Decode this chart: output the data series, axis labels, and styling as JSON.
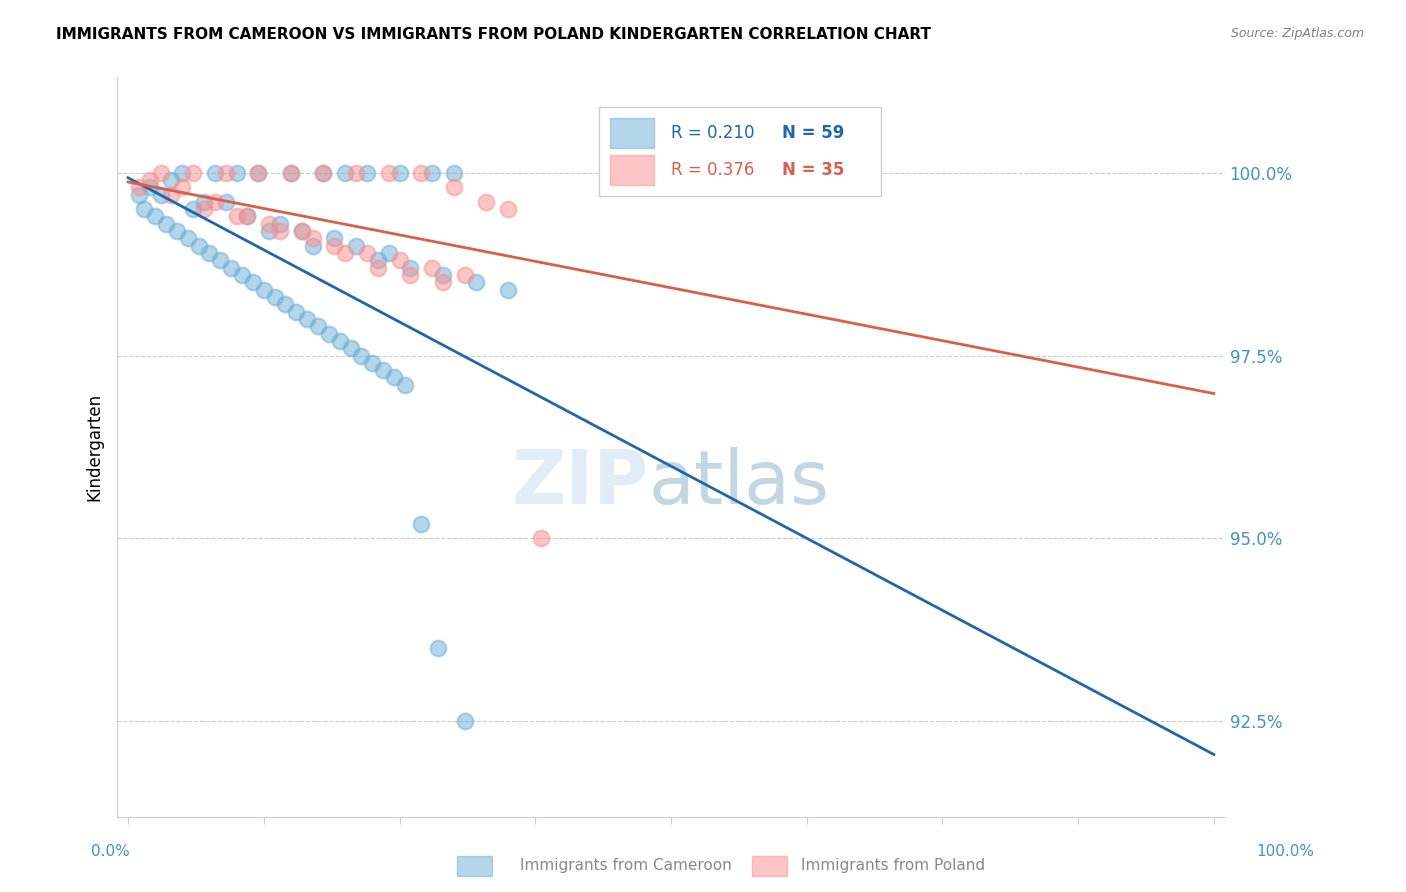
{
  "title": "IMMIGRANTS FROM CAMEROON VS IMMIGRANTS FROM POLAND KINDERGARTEN CORRELATION CHART",
  "source": "Source: ZipAtlas.com",
  "ylabel": "Kindergarten",
  "yticks": [
    92.5,
    95.0,
    97.5,
    100.0
  ],
  "ytick_labels": [
    "92.5%",
    "95.0%",
    "97.5%",
    "100.0%"
  ],
  "legend_blue_r": "R = 0.210",
  "legend_blue_n": "N = 59",
  "legend_pink_r": "R = 0.376",
  "legend_pink_n": "N = 35",
  "blue_color": "#6baed6",
  "pink_color": "#fc8d8d",
  "blue_line_color": "#2166ac",
  "pink_line_color": "#d6604d",
  "text_color": "#4393c3",
  "cameroon_x": [
    0.05,
    0.08,
    0.1,
    0.12,
    0.15,
    0.18,
    0.2,
    0.22,
    0.25,
    0.28,
    0.3,
    0.03,
    0.06,
    0.09,
    0.11,
    0.14,
    0.16,
    0.19,
    0.21,
    0.24,
    0.02,
    0.04,
    0.07,
    0.13,
    0.17,
    0.23,
    0.26,
    0.29,
    0.32,
    0.35,
    0.01,
    0.015,
    0.025,
    0.035,
    0.045,
    0.055,
    0.065,
    0.075,
    0.085,
    0.095,
    0.105,
    0.115,
    0.125,
    0.135,
    0.145,
    0.155,
    0.165,
    0.175,
    0.185,
    0.195,
    0.205,
    0.215,
    0.225,
    0.235,
    0.245,
    0.255,
    0.27,
    0.285,
    0.31
  ],
  "cameroon_y": [
    100.0,
    100.0,
    100.0,
    100.0,
    100.0,
    100.0,
    100.0,
    100.0,
    100.0,
    100.0,
    100.0,
    99.7,
    99.5,
    99.6,
    99.4,
    99.3,
    99.2,
    99.1,
    99.0,
    98.9,
    99.8,
    99.9,
    99.6,
    99.2,
    99.0,
    98.8,
    98.7,
    98.6,
    98.5,
    98.4,
    99.7,
    99.5,
    99.4,
    99.3,
    99.2,
    99.1,
    99.0,
    98.9,
    98.8,
    98.7,
    98.6,
    98.5,
    98.4,
    98.3,
    98.2,
    98.1,
    98.0,
    97.9,
    97.8,
    97.7,
    97.6,
    97.5,
    97.4,
    97.3,
    97.2,
    97.1,
    95.2,
    93.5,
    92.5
  ],
  "poland_x": [
    0.03,
    0.06,
    0.09,
    0.12,
    0.15,
    0.18,
    0.21,
    0.24,
    0.27,
    0.3,
    0.33,
    0.04,
    0.07,
    0.1,
    0.13,
    0.16,
    0.19,
    0.22,
    0.25,
    0.28,
    0.31,
    0.05,
    0.08,
    0.11,
    0.14,
    0.17,
    0.2,
    0.23,
    0.26,
    0.29,
    0.55,
    0.02,
    0.01,
    0.35,
    0.38
  ],
  "poland_y": [
    100.0,
    100.0,
    100.0,
    100.0,
    100.0,
    100.0,
    100.0,
    100.0,
    100.0,
    99.8,
    99.6,
    99.7,
    99.5,
    99.4,
    99.3,
    99.2,
    99.0,
    98.9,
    98.8,
    98.7,
    98.6,
    99.8,
    99.6,
    99.4,
    99.2,
    99.1,
    98.9,
    98.7,
    98.6,
    98.5,
    100.0,
    99.9,
    99.8,
    99.5,
    95.0
  ]
}
